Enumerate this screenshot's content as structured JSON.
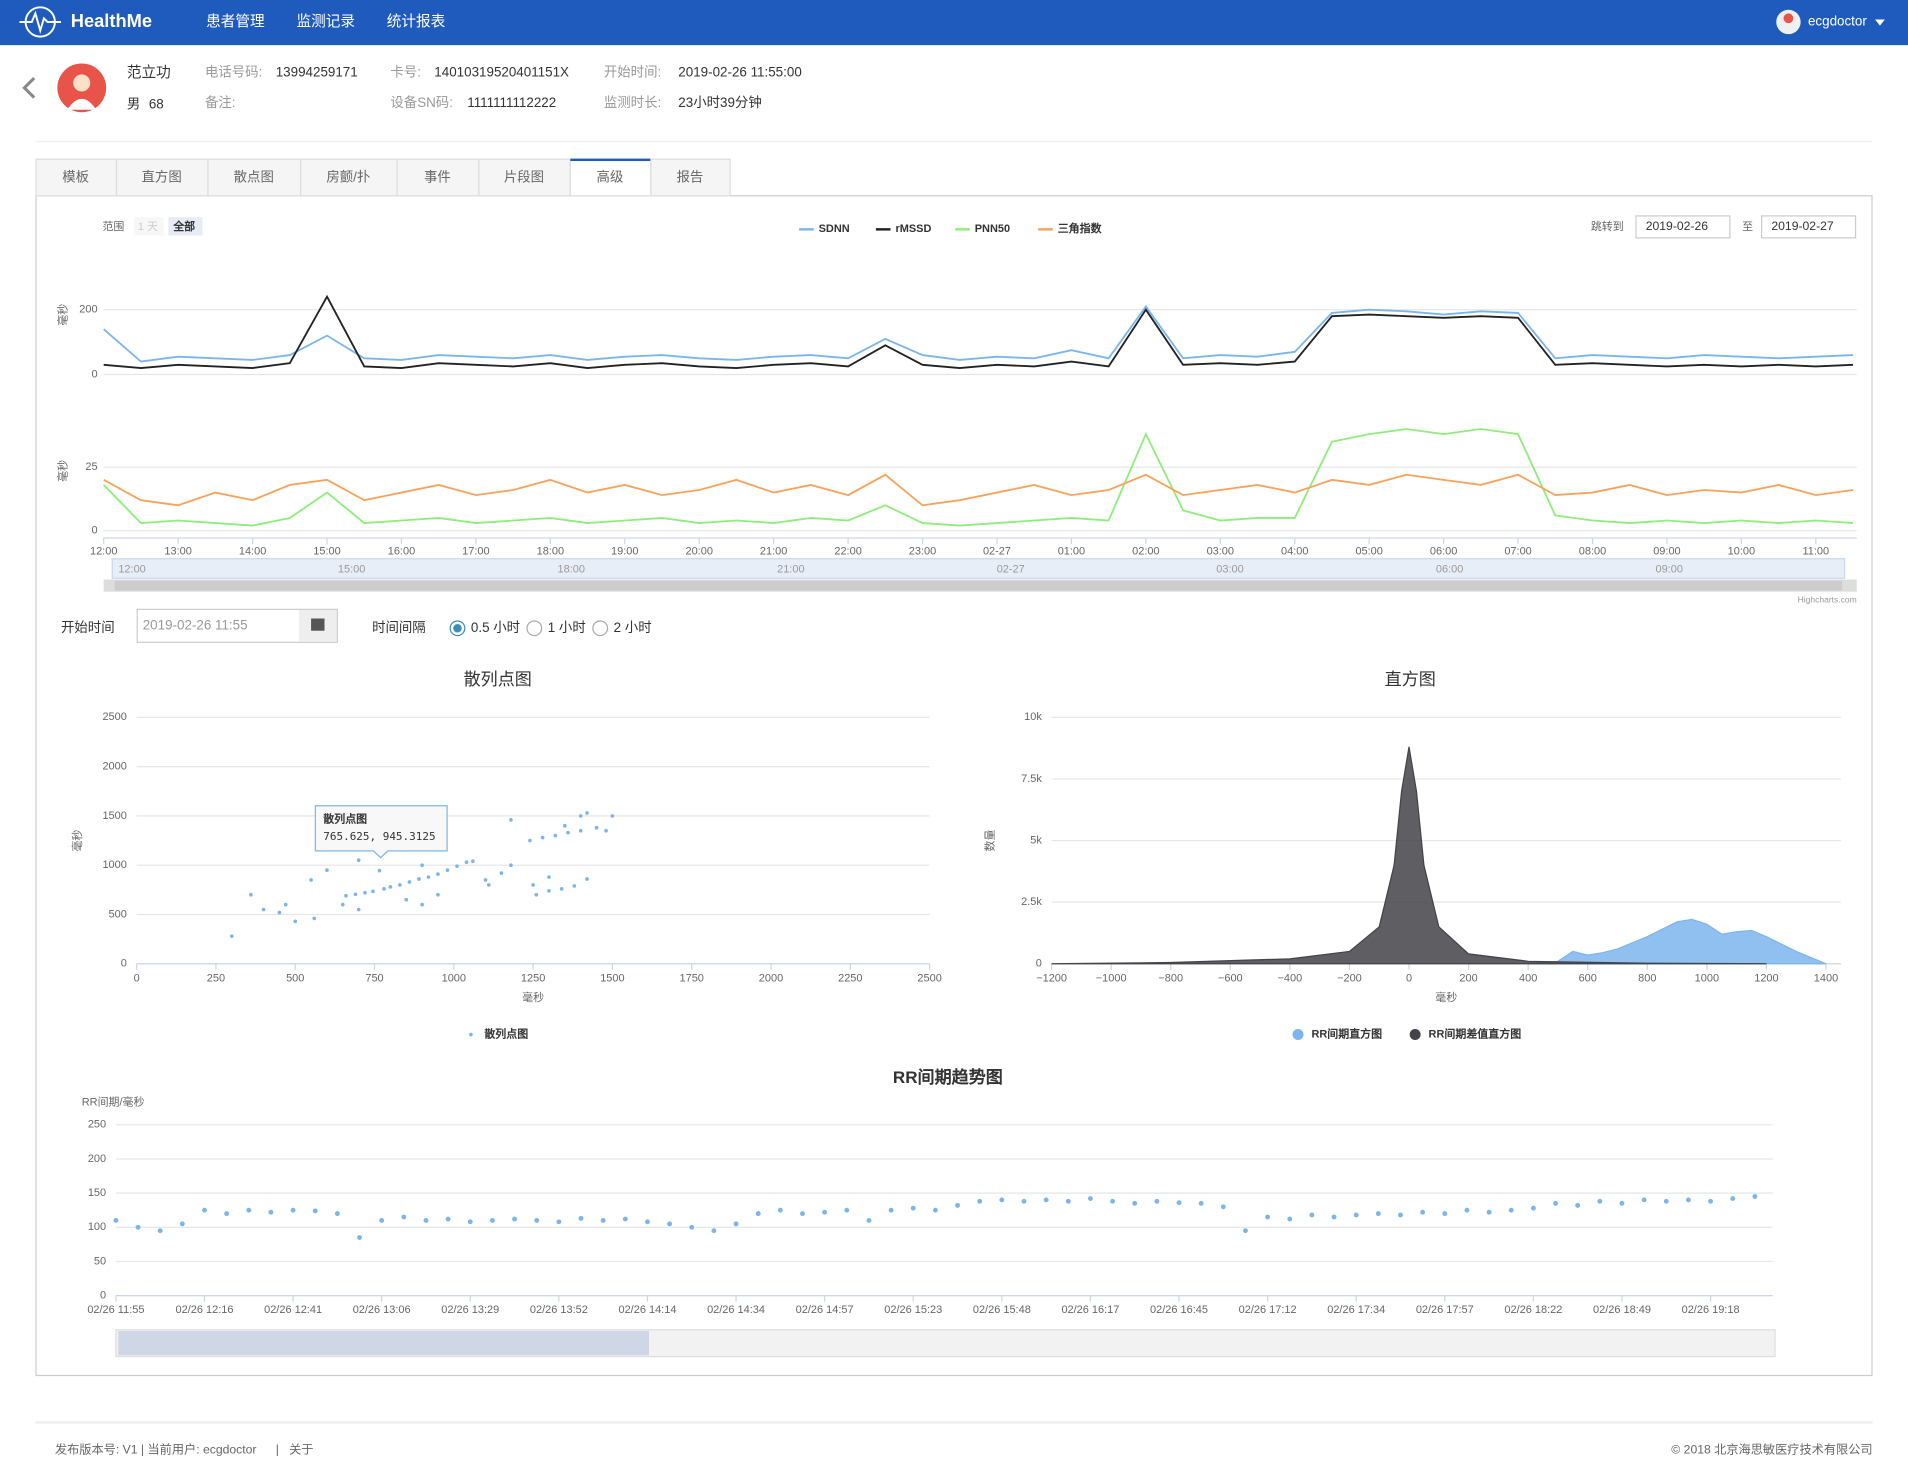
{
  "header": {
    "brand": "HealthMe",
    "nav": [
      "患者管理",
      "监测记录",
      "统计报表"
    ],
    "user": "ecgdoctor"
  },
  "patient": {
    "name": "范立功",
    "sex": "男",
    "age": 68,
    "phone_label": "电话号码:",
    "phone": "13994259171",
    "card_label": "卡号:",
    "card": "14010319520401151X",
    "start_label": "开始时间:",
    "start": "2019-02-26 11:55:00",
    "note_label": "备注:",
    "sn_label": "设备SN码:",
    "sn": "1111111112222",
    "duration_label": "监测时长:",
    "duration": "23小时39分钟"
  },
  "tabs": {
    "labels": [
      "模板",
      "直方图",
      "散点图",
      "房颤/扑",
      "事件",
      "片段图",
      "高级",
      "报告"
    ],
    "active": 6
  },
  "hrv_panel": {
    "range_label": "范围",
    "range_options": [
      "1 天",
      "全部"
    ],
    "range_selected": 1,
    "jump_label": "跳转到",
    "from": "2019-02-26",
    "to_label": "至",
    "to": "2019-02-27",
    "navigator_labels": [
      "12:00",
      "15:00",
      "18:00",
      "21:00",
      "02-27",
      "03:00",
      "06:00",
      "09:00"
    ],
    "credit": "Highcharts.com"
  },
  "controls": {
    "start_label": "开始时间",
    "start_value": "2019-02-26 11:55",
    "interval_label": "时间间隔",
    "interval_options": [
      "0.5 小时",
      "1 小时",
      "2 小时"
    ],
    "interval_selected": 0
  },
  "chart_data": [
    {
      "type": "line",
      "x": [
        0,
        0.5,
        1,
        1.5,
        2,
        2.5,
        3,
        3.5,
        4,
        4.5,
        5,
        5.5,
        6,
        6.5,
        7,
        7.5,
        8,
        8.5,
        9,
        9.5,
        10,
        10.5,
        11,
        11.5,
        12,
        12.5,
        13,
        13.5,
        14,
        14.5,
        15,
        15.5,
        16,
        16.5,
        17,
        17.5,
        18,
        18.5,
        19,
        19.5,
        20,
        20.5,
        21,
        21.5,
        22,
        22.5,
        23,
        23.5
      ],
      "xlim": [
        0,
        23.55
      ],
      "xticks": [
        {
          "value": 0,
          "label": "12:00"
        },
        {
          "value": 1,
          "label": "13:00"
        },
        {
          "value": 2,
          "label": "14:00"
        },
        {
          "value": 3,
          "label": "15:00"
        },
        {
          "value": 4,
          "label": "16:00"
        },
        {
          "value": 5,
          "label": "17:00"
        },
        {
          "value": 6,
          "label": "18:00"
        },
        {
          "value": 7,
          "label": "19:00"
        },
        {
          "value": 8,
          "label": "20:00"
        },
        {
          "value": 9,
          "label": "21:00"
        },
        {
          "value": 10,
          "label": "22:00"
        },
        {
          "value": 11,
          "label": "23:00"
        },
        {
          "value": 12,
          "label": "02-27"
        },
        {
          "value": 13,
          "label": "01:00"
        },
        {
          "value": 14,
          "label": "02:00"
        },
        {
          "value": 15,
          "label": "03:00"
        },
        {
          "value": 16,
          "label": "04:00"
        },
        {
          "value": 17,
          "label": "05:00"
        },
        {
          "value": 18,
          "label": "06:00"
        },
        {
          "value": 19,
          "label": "07:00"
        },
        {
          "value": 20,
          "label": "08:00"
        },
        {
          "value": 21,
          "label": "09:00"
        },
        {
          "value": 22,
          "label": "10:00"
        },
        {
          "value": 23,
          "label": "11:00"
        }
      ],
      "ylim": [
        0,
        380
      ],
      "yticks": [
        0,
        200
      ],
      "ylabel": "毫秒",
      "y2lim": [
        0,
        48
      ],
      "y2ticks": [
        0,
        25
      ],
      "y2label": "毫秒",
      "grid": true,
      "series": [
        {
          "name": "SDNN",
          "color": "#7cb5ec",
          "values": [
            140,
            40,
            55,
            50,
            45,
            60,
            120,
            50,
            45,
            60,
            55,
            50,
            60,
            45,
            55,
            60,
            50,
            45,
            55,
            60,
            50,
            110,
            60,
            45,
            55,
            50,
            75,
            50,
            210,
            50,
            60,
            55,
            70,
            190,
            200,
            195,
            185,
            195,
            190,
            50,
            60,
            55,
            50,
            60,
            55,
            50,
            55,
            60
          ]
        },
        {
          "name": "rMSSD",
          "color": "#222222",
          "values": [
            30,
            20,
            30,
            25,
            20,
            35,
            240,
            25,
            20,
            35,
            30,
            25,
            35,
            20,
            30,
            35,
            25,
            20,
            30,
            35,
            25,
            90,
            30,
            20,
            30,
            25,
            40,
            25,
            200,
            30,
            35,
            30,
            40,
            180,
            185,
            180,
            175,
            180,
            175,
            30,
            35,
            30,
            25,
            30,
            25,
            30,
            25,
            30
          ]
        },
        {
          "name": "PNN50",
          "color": "#90ed7d",
          "axis": "y2",
          "values": [
            18,
            3,
            4,
            3,
            2,
            5,
            15,
            3,
            4,
            5,
            3,
            4,
            5,
            3,
            4,
            5,
            3,
            4,
            3,
            5,
            4,
            10,
            3,
            2,
            3,
            4,
            5,
            4,
            38,
            8,
            4,
            5,
            5,
            35,
            38,
            40,
            38,
            40,
            38,
            6,
            4,
            3,
            4,
            3,
            4,
            3,
            4,
            3
          ]
        },
        {
          "name": "三角指数",
          "color": "#f7a35c",
          "axis": "y2",
          "values": [
            20,
            12,
            10,
            15,
            12,
            18,
            20,
            12,
            15,
            18,
            14,
            16,
            20,
            15,
            18,
            14,
            16,
            20,
            15,
            18,
            14,
            22,
            10,
            12,
            15,
            18,
            14,
            16,
            22,
            14,
            16,
            18,
            15,
            20,
            18,
            22,
            20,
            18,
            22,
            14,
            15,
            18,
            14,
            16,
            15,
            18,
            14,
            16
          ]
        }
      ]
    },
    {
      "type": "scatter",
      "title": "散列点图",
      "xlabel": "毫秒",
      "ylabel": "毫秒",
      "xlim": [
        0,
        2500
      ],
      "xticks": [
        0,
        250,
        500,
        750,
        1000,
        1250,
        1500,
        1750,
        2000,
        2250,
        2500
      ],
      "ylim": [
        0,
        2500
      ],
      "yticks": [
        0,
        500,
        1000,
        1500,
        2000,
        2500
      ],
      "grid": true,
      "tooltip": {
        "title": "散列点图",
        "text": "765.625, 945.3125"
      },
      "series": [
        {
          "name": "散列点图",
          "color": "#7cb5ec",
          "x": [
            660,
            690,
            720,
            745,
            765.625,
            780,
            800,
            830,
            860,
            890,
            920,
            950,
            980,
            1010,
            1040,
            1060,
            1240,
            1280,
            1320,
            1360,
            1400,
            1450,
            1500,
            1420,
            1350,
            1480,
            1260,
            1300,
            1340,
            1380,
            1300,
            1420,
            1250,
            300,
            400,
            450,
            500,
            360,
            560,
            650,
            700,
            850,
            900,
            950,
            1100,
            1150,
            1180,
            900,
            600,
            700,
            1110,
            1400,
            1180,
            550,
            470
          ],
          "values": [
            690,
            705,
            720,
            735,
            945.3125,
            760,
            780,
            800,
            830,
            860,
            880,
            910,
            950,
            990,
            1030,
            1040,
            1250,
            1280,
            1300,
            1330,
            1350,
            1380,
            1500,
            1530,
            1400,
            1350,
            700,
            740,
            760,
            790,
            880,
            860,
            800,
            280,
            550,
            520,
            430,
            700,
            460,
            600,
            550,
            650,
            600,
            700,
            850,
            920,
            1000,
            1000,
            950,
            1050,
            800,
            1500,
            1460,
            850,
            600
          ]
        }
      ]
    },
    {
      "type": "area",
      "title": "直方图",
      "xlabel": "毫秒",
      "ylabel": "数量",
      "xlim": [
        -1200,
        1450
      ],
      "xticks": [
        {
          "value": -1200,
          "label": "−1200"
        },
        {
          "value": -1000,
          "label": "−1000"
        },
        {
          "value": -800,
          "label": "−800"
        },
        {
          "value": -600,
          "label": "−600"
        },
        {
          "value": -400,
          "label": "−400"
        },
        {
          "value": -200,
          "label": "−200"
        },
        0,
        200,
        400,
        600,
        800,
        1000,
        1200,
        1400
      ],
      "ylim": [
        0,
        10000
      ],
      "yticks": [
        0,
        {
          "value": 2500,
          "label": "2.5k"
        },
        {
          "value": 5000,
          "label": "5k"
        },
        {
          "value": 7500,
          "label": "7.5k"
        },
        {
          "value": 10000,
          "label": "10k"
        }
      ],
      "grid": true,
      "series": [
        {
          "name": "RR间期直方图",
          "color": "#7cb5ec",
          "x": [
            400,
            500,
            550,
            600,
            650,
            700,
            800,
            900,
            950,
            1000,
            1050,
            1100,
            1150,
            1200,
            1300,
            1400
          ],
          "values": [
            0,
            100,
            500,
            350,
            450,
            600,
            1100,
            1700,
            1800,
            1600,
            1200,
            1300,
            1350,
            1100,
            500,
            0
          ]
        },
        {
          "name": "RR间期差值直方图",
          "color": "#434348",
          "x": [
            -1200,
            -800,
            -400,
            -200,
            -100,
            -50,
            -25,
            0,
            25,
            50,
            100,
            200,
            400,
            800,
            1200
          ],
          "values": [
            0,
            50,
            200,
            500,
            1500,
            4000,
            7000,
            8800,
            7000,
            4000,
            1500,
            400,
            100,
            20,
            0
          ]
        }
      ]
    },
    {
      "type": "scatter",
      "title": "RR间期趋势图",
      "ylabel": "RR间期/毫秒",
      "xlim": [
        0,
        18.7
      ],
      "xticks": [
        {
          "value": 0,
          "label": "02/26 11:55"
        },
        {
          "value": 1,
          "label": "02/26 12:16"
        },
        {
          "value": 2,
          "label": "02/26 12:41"
        },
        {
          "value": 3,
          "label": "02/26 13:06"
        },
        {
          "value": 4,
          "label": "02/26 13:29"
        },
        {
          "value": 5,
          "label": "02/26 13:52"
        },
        {
          "value": 6,
          "label": "02/26 14:14"
        },
        {
          "value": 7,
          "label": "02/26 14:34"
        },
        {
          "value": 8,
          "label": "02/26 14:57"
        },
        {
          "value": 9,
          "label": "02/26 15:23"
        },
        {
          "value": 10,
          "label": "02/26 15:48"
        },
        {
          "value": 11,
          "label": "02/26 16:17"
        },
        {
          "value": 12,
          "label": "02/26 16:45"
        },
        {
          "value": 13,
          "label": "02/26 17:12"
        },
        {
          "value": 14,
          "label": "02/26 17:34"
        },
        {
          "value": 15,
          "label": "02/26 17:57"
        },
        {
          "value": 16,
          "label": "02/26 18:22"
        },
        {
          "value": 17,
          "label": "02/26 18:49"
        },
        {
          "value": 18,
          "label": "02/26 19:18"
        }
      ],
      "ylim": [
        0,
        250
      ],
      "yticks": [
        0,
        50,
        100,
        150,
        200,
        250
      ],
      "grid": true,
      "series": [
        {
          "color": "#7cb5ec",
          "x": [
            0,
            0.25,
            0.5,
            0.75,
            1,
            1.25,
            1.5,
            1.75,
            2,
            2.25,
            2.5,
            2.75,
            3,
            3.25,
            3.5,
            3.75,
            4,
            4.25,
            4.5,
            4.75,
            5,
            5.25,
            5.5,
            5.75,
            6,
            6.25,
            6.5,
            6.75,
            7,
            7.25,
            7.5,
            7.75,
            8,
            8.25,
            8.5,
            8.75,
            9,
            9.25,
            9.5,
            9.75,
            10,
            10.25,
            10.5,
            10.75,
            11,
            11.25,
            11.5,
            11.75,
            12,
            12.25,
            12.5,
            12.75,
            13,
            13.25,
            13.5,
            13.75,
            14,
            14.25,
            14.5,
            14.75,
            15,
            15.25,
            15.5,
            15.75,
            16,
            16.25,
            16.5,
            16.75,
            17,
            17.25,
            17.5,
            17.75,
            18,
            18.25,
            18.5
          ],
          "values": [
            110,
            100,
            95,
            105,
            125,
            120,
            125,
            122,
            125,
            124,
            120,
            85,
            110,
            115,
            110,
            112,
            108,
            110,
            112,
            110,
            108,
            113,
            110,
            112,
            108,
            105,
            100,
            95,
            105,
            120,
            125,
            120,
            122,
            125,
            110,
            125,
            128,
            125,
            132,
            138,
            140,
            138,
            140,
            138,
            142,
            138,
            135,
            138,
            136,
            135,
            130,
            95,
            115,
            112,
            118,
            115,
            118,
            120,
            118,
            122,
            120,
            125,
            122,
            125,
            128,
            135,
            132,
            138,
            135,
            140,
            138,
            140,
            138,
            142,
            145
          ]
        }
      ]
    }
  ],
  "footer": {
    "info": "发布版本号: V1 | 当前用户: ecgdoctor",
    "separator": "|",
    "about": "关于",
    "copyright": "© 2018 北京海思敏医疗技术有限公司"
  }
}
